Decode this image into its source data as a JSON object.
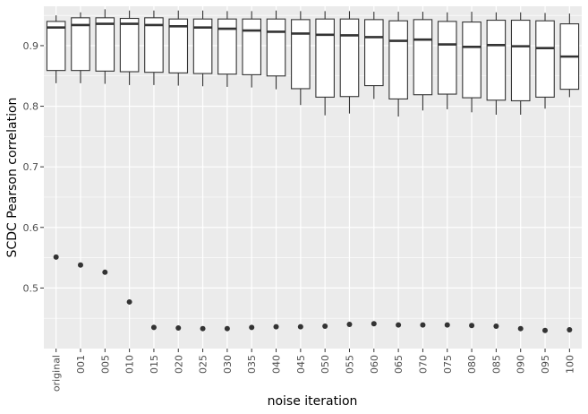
{
  "chart_data": {
    "type": "boxplot",
    "xlabel": "noise iteration",
    "ylabel": "SCDC Pearson correlation",
    "ylim": [
      0.4,
      0.965
    ],
    "y_ticks": [
      0.5,
      0.6,
      0.7,
      0.8,
      0.9
    ],
    "y_tick_labels": [
      "0.5",
      "0.6",
      "0.7",
      "0.8",
      "0.9"
    ],
    "categories": [
      "original",
      "001",
      "005",
      "010",
      "015",
      "020",
      "025",
      "030",
      "035",
      "040",
      "045",
      "050",
      "055",
      "060",
      "065",
      "070",
      "075",
      "080",
      "085",
      "090",
      "095",
      "100"
    ],
    "boxes": [
      {
        "category": "original",
        "lower_whisker": 0.838,
        "q1": 0.859,
        "median": 0.93,
        "q3": 0.94,
        "upper_whisker": 0.95
      },
      {
        "category": "001",
        "lower_whisker": 0.838,
        "q1": 0.859,
        "median": 0.934,
        "q3": 0.946,
        "upper_whisker": 0.955
      },
      {
        "category": "005",
        "lower_whisker": 0.837,
        "q1": 0.858,
        "median": 0.936,
        "q3": 0.946,
        "upper_whisker": 0.96
      },
      {
        "category": "010",
        "lower_whisker": 0.835,
        "q1": 0.857,
        "median": 0.936,
        "q3": 0.945,
        "upper_whisker": 0.958
      },
      {
        "category": "015",
        "lower_whisker": 0.835,
        "q1": 0.856,
        "median": 0.934,
        "q3": 0.946,
        "upper_whisker": 0.958
      },
      {
        "category": "020",
        "lower_whisker": 0.834,
        "q1": 0.855,
        "median": 0.932,
        "q3": 0.944,
        "upper_whisker": 0.958
      },
      {
        "category": "025",
        "lower_whisker": 0.833,
        "q1": 0.854,
        "median": 0.93,
        "q3": 0.944,
        "upper_whisker": 0.958
      },
      {
        "category": "030",
        "lower_whisker": 0.832,
        "q1": 0.853,
        "median": 0.928,
        "q3": 0.944,
        "upper_whisker": 0.957
      },
      {
        "category": "035",
        "lower_whisker": 0.831,
        "q1": 0.852,
        "median": 0.925,
        "q3": 0.944,
        "upper_whisker": 0.957
      },
      {
        "category": "040",
        "lower_whisker": 0.828,
        "q1": 0.85,
        "median": 0.923,
        "q3": 0.944,
        "upper_whisker": 0.958
      },
      {
        "category": "045",
        "lower_whisker": 0.802,
        "q1": 0.829,
        "median": 0.92,
        "q3": 0.943,
        "upper_whisker": 0.957
      },
      {
        "category": "050",
        "lower_whisker": 0.785,
        "q1": 0.815,
        "median": 0.918,
        "q3": 0.944,
        "upper_whisker": 0.957
      },
      {
        "category": "055",
        "lower_whisker": 0.788,
        "q1": 0.816,
        "median": 0.917,
        "q3": 0.944,
        "upper_whisker": 0.957
      },
      {
        "category": "060",
        "lower_whisker": 0.812,
        "q1": 0.834,
        "median": 0.914,
        "q3": 0.943,
        "upper_whisker": 0.956
      },
      {
        "category": "065",
        "lower_whisker": 0.783,
        "q1": 0.812,
        "median": 0.908,
        "q3": 0.941,
        "upper_whisker": 0.956
      },
      {
        "category": "070",
        "lower_whisker": 0.793,
        "q1": 0.819,
        "median": 0.91,
        "q3": 0.943,
        "upper_whisker": 0.956
      },
      {
        "category": "075",
        "lower_whisker": 0.795,
        "q1": 0.82,
        "median": 0.902,
        "q3": 0.94,
        "upper_whisker": 0.955
      },
      {
        "category": "080",
        "lower_whisker": 0.79,
        "q1": 0.814,
        "median": 0.898,
        "q3": 0.939,
        "upper_whisker": 0.956
      },
      {
        "category": "085",
        "lower_whisker": 0.786,
        "q1": 0.81,
        "median": 0.901,
        "q3": 0.942,
        "upper_whisker": 0.955
      },
      {
        "category": "090",
        "lower_whisker": 0.786,
        "q1": 0.809,
        "median": 0.899,
        "q3": 0.942,
        "upper_whisker": 0.955
      },
      {
        "category": "095",
        "lower_whisker": 0.796,
        "q1": 0.815,
        "median": 0.896,
        "q3": 0.941,
        "upper_whisker": 0.954
      },
      {
        "category": "100",
        "lower_whisker": 0.815,
        "q1": 0.828,
        "median": 0.882,
        "q3": 0.936,
        "upper_whisker": 0.953
      }
    ],
    "outliers": [
      {
        "category": "original",
        "y": 0.551
      },
      {
        "category": "001",
        "y": 0.538
      },
      {
        "category": "005",
        "y": 0.526
      },
      {
        "category": "010",
        "y": 0.477
      },
      {
        "category": "015",
        "y": 0.435
      },
      {
        "category": "020",
        "y": 0.434
      },
      {
        "category": "025",
        "y": 0.433
      },
      {
        "category": "030",
        "y": 0.433
      },
      {
        "category": "035",
        "y": 0.435
      },
      {
        "category": "040",
        "y": 0.436
      },
      {
        "category": "045",
        "y": 0.436
      },
      {
        "category": "050",
        "y": 0.437
      },
      {
        "category": "055",
        "y": 0.44
      },
      {
        "category": "060",
        "y": 0.441
      },
      {
        "category": "065",
        "y": 0.439
      },
      {
        "category": "070",
        "y": 0.439
      },
      {
        "category": "075",
        "y": 0.439
      },
      {
        "category": "080",
        "y": 0.438
      },
      {
        "category": "085",
        "y": 0.437
      },
      {
        "category": "090",
        "y": 0.433
      },
      {
        "category": "095",
        "y": 0.43
      },
      {
        "category": "100",
        "y": 0.431
      }
    ],
    "grid": true,
    "legend": "none",
    "colors": {
      "panel_background": "#ebebeb",
      "grid_major": "#ffffff",
      "box_fill": "#ffffff",
      "box_line": "#333333",
      "point": "#333333",
      "tick_text": "#4d4d4d",
      "title_text": "#000000"
    }
  }
}
